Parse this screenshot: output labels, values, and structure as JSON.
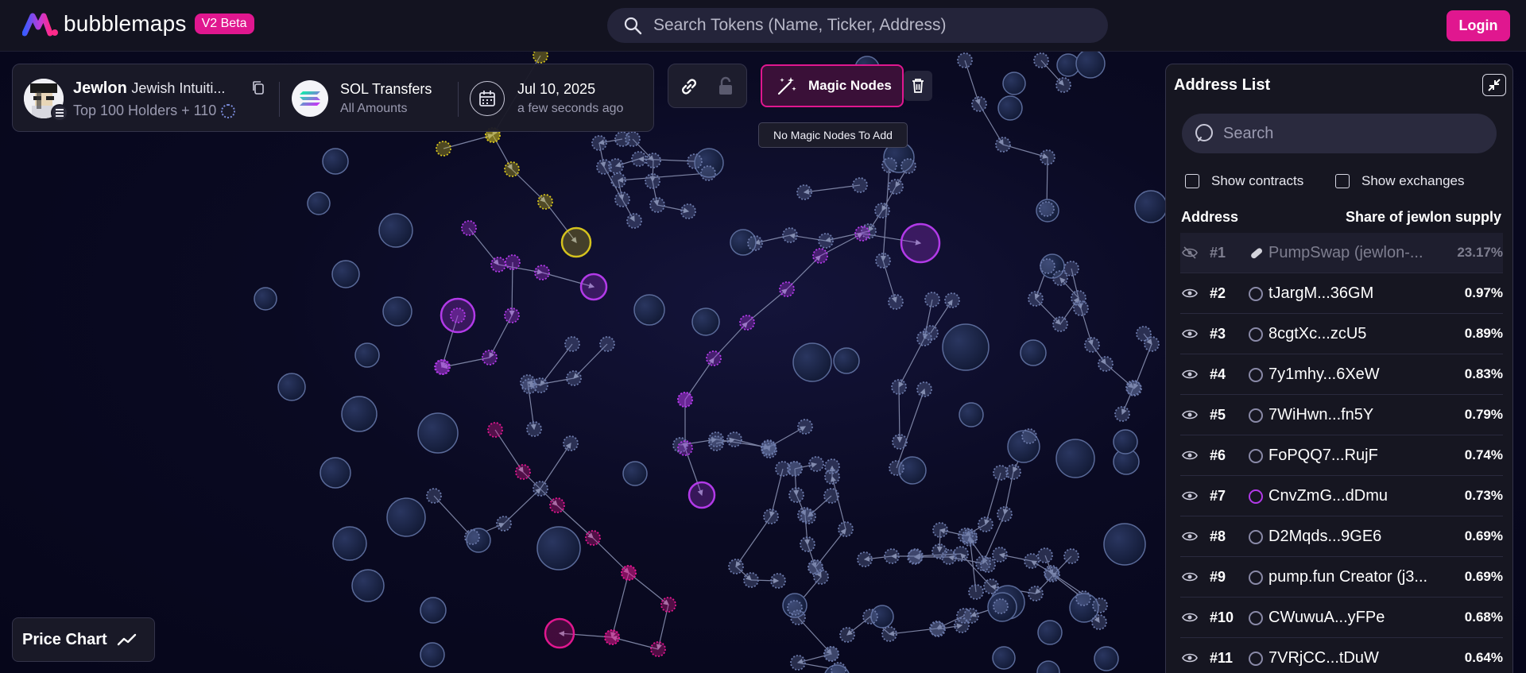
{
  "app": {
    "name": "bubblemaps",
    "badge": "V2 Beta",
    "search_placeholder": "Search Tokens (Name, Ticker, Address)",
    "login_label": "Login"
  },
  "token": {
    "symbol": "Jewlon",
    "name": "Jewish Intuiti...",
    "holders": "Top 100 Holders + 110",
    "transfers_title": "SOL Transfers",
    "transfers_sub": "All Amounts",
    "date": "Jul 10, 2025",
    "date_ago": "a few seconds ago"
  },
  "toolbar": {
    "magic_label": "Magic Nodes",
    "tooltip": "No Magic Nodes To Add"
  },
  "panel": {
    "title": "Address List",
    "search_placeholder": "Search",
    "show_contracts": "Show contracts",
    "show_exchanges": "Show exchanges",
    "col_address": "Address",
    "col_share": "Share of jewlon supply",
    "rows": [
      {
        "rank": "#1",
        "address": "PumpSwap (jewlon-...",
        "share": "23.17%",
        "dot": "#d8d8e4"
      },
      {
        "rank": "#2",
        "address": "tJargM...36GM",
        "share": "0.97%",
        "dot": "#8a8aa8"
      },
      {
        "rank": "#3",
        "address": "8cgtXc...zcU5",
        "share": "0.89%",
        "dot": "#8a8aa8"
      },
      {
        "rank": "#4",
        "address": "7y1mhy...6XeW",
        "share": "0.83%",
        "dot": "#8a8aa8"
      },
      {
        "rank": "#5",
        "address": "7WiHwn...fn5Y",
        "share": "0.79%",
        "dot": "#8a8aa8"
      },
      {
        "rank": "#6",
        "address": "FoPQQ7...RujF",
        "share": "0.74%",
        "dot": "#8a8aa8"
      },
      {
        "rank": "#7",
        "address": "CnvZmG...dDmu",
        "share": "0.73%",
        "dot": "#b23ae8"
      },
      {
        "rank": "#8",
        "address": "D2Mqds...9GE6",
        "share": "0.69%",
        "dot": "#8a8aa8"
      },
      {
        "rank": "#9",
        "address": "pump.fun Creator (j3...",
        "share": "0.69%",
        "dot": "#8a8aa8"
      },
      {
        "rank": "#10",
        "address": "CWuwuA...yFPe",
        "share": "0.68%",
        "dot": "#8a8aa8"
      },
      {
        "rank": "#11",
        "address": "7VRjCC...tDuW",
        "share": "0.64%",
        "dot": "#8a8aa8"
      }
    ]
  },
  "price_chart_label": "Price Chart",
  "colors": {
    "accent": "#e0178f",
    "bubble_default": "#1e2a4a",
    "bubble_stroke": "#5a6a99",
    "cluster_yellow": "#d4c21e",
    "cluster_purple": "#b23ae8",
    "cluster_magenta": "#e0178f"
  }
}
